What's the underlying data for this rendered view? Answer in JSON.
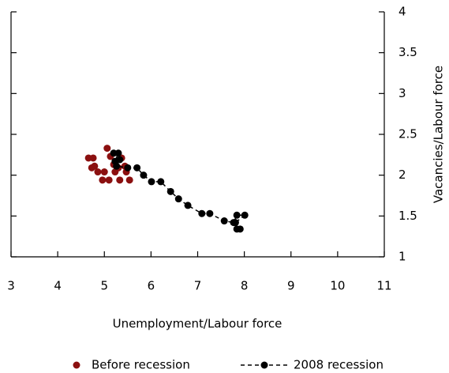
{
  "chart_data": {
    "type": "scatter",
    "xlabel": "Unemployment/Labour force",
    "ylabel": "Vacancies/Labour force",
    "xlim": [
      3,
      11
    ],
    "xticks": [
      3,
      4,
      5,
      6,
      7,
      8,
      9,
      10,
      11
    ],
    "ylim": [
      1,
      4
    ],
    "yticks": [
      1,
      1.5,
      2,
      2.5,
      3,
      3.5,
      4
    ],
    "y_tick_labels_side": "right",
    "legend": "bottom",
    "series": [
      {
        "name": "Before recession",
        "color": "#8b1010",
        "line": false,
        "x": [
          4.66,
          4.76,
          4.79,
          4.73,
          4.86,
          5.0,
          4.96,
          5.1,
          5.06,
          5.13,
          5.2,
          5.3,
          5.23,
          5.33,
          5.47,
          5.54,
          5.44,
          5.37
        ],
        "values": [
          2.21,
          2.21,
          2.11,
          2.09,
          2.04,
          2.04,
          1.94,
          1.94,
          2.33,
          2.23,
          2.13,
          2.09,
          2.04,
          1.94,
          2.04,
          1.94,
          2.11,
          2.21
        ]
      },
      {
        "name": "2008 recession",
        "color": "#000000",
        "line": true,
        "x": [
          5.2,
          5.3,
          5.23,
          5.33,
          5.26,
          5.5,
          5.7,
          5.84,
          6.01,
          6.21,
          6.42,
          6.59,
          6.79,
          7.09,
          7.26,
          7.57,
          7.77,
          7.84,
          8.01,
          7.81,
          7.84,
          7.91
        ],
        "values": [
          2.27,
          2.27,
          2.17,
          2.19,
          2.11,
          2.09,
          2.09,
          2.0,
          1.92,
          1.92,
          1.8,
          1.71,
          1.63,
          1.53,
          1.53,
          1.44,
          1.42,
          1.51,
          1.51,
          1.42,
          1.34,
          1.34
        ]
      }
    ]
  }
}
